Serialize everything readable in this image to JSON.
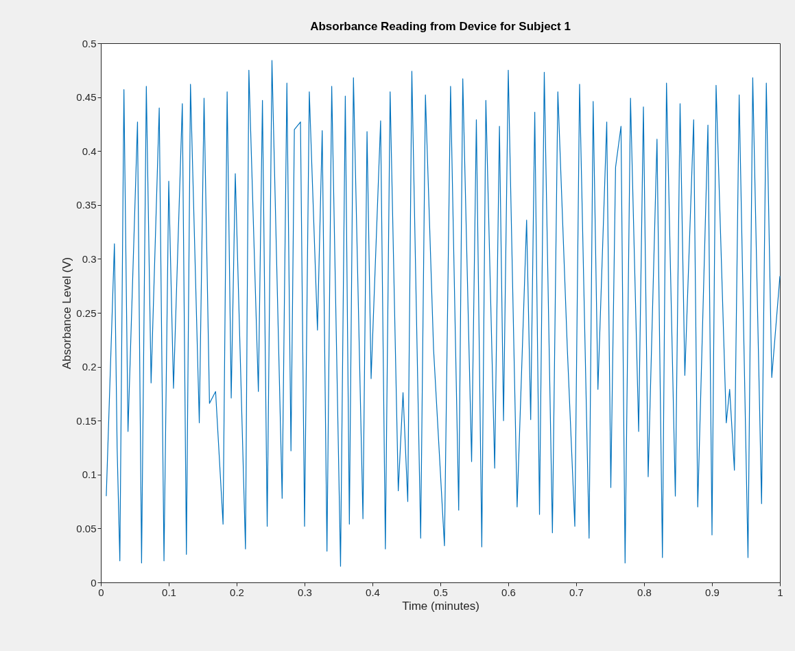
{
  "chart_data": {
    "type": "line",
    "title": "Absorbance Reading from Device for Subject 1",
    "xlabel": "Time (minutes)",
    "ylabel": "Absorbance Level (V)",
    "x": [
      0.008,
      0.02,
      0.024,
      0.028,
      0.034,
      0.04,
      0.054,
      0.06,
      0.067,
      0.074,
      0.086,
      0.093,
      0.1,
      0.107,
      0.12,
      0.126,
      0.132,
      0.145,
      0.152,
      0.16,
      0.169,
      0.18,
      0.186,
      0.192,
      0.198,
      0.213,
      0.218,
      0.232,
      0.238,
      0.245,
      0.252,
      0.267,
      0.274,
      0.28,
      0.285,
      0.294,
      0.3,
      0.307,
      0.319,
      0.326,
      0.333,
      0.34,
      0.353,
      0.36,
      0.366,
      0.372,
      0.386,
      0.392,
      0.398,
      0.412,
      0.419,
      0.426,
      0.438,
      0.445,
      0.452,
      0.458,
      0.471,
      0.478,
      0.49,
      0.506,
      0.515,
      0.527,
      0.533,
      0.546,
      0.553,
      0.561,
      0.567,
      0.58,
      0.587,
      0.593,
      0.6,
      0.613,
      0.627,
      0.633,
      0.639,
      0.646,
      0.653,
      0.665,
      0.673,
      0.687,
      0.698,
      0.705,
      0.719,
      0.725,
      0.732,
      0.745,
      0.751,
      0.758,
      0.766,
      0.772,
      0.78,
      0.792,
      0.799,
      0.806,
      0.819,
      0.827,
      0.833,
      0.846,
      0.853,
      0.86,
      0.873,
      0.879,
      0.894,
      0.9,
      0.906,
      0.921,
      0.926,
      0.933,
      0.94,
      0.953,
      0.96,
      0.973,
      0.98,
      0.988,
      1.0
    ],
    "values": [
      0.08,
      0.314,
      0.125,
      0.02,
      0.457,
      0.14,
      0.427,
      0.018,
      0.46,
      0.185,
      0.44,
      0.02,
      0.372,
      0.18,
      0.444,
      0.026,
      0.462,
      0.148,
      0.449,
      0.166,
      0.177,
      0.054,
      0.455,
      0.171,
      0.379,
      0.031,
      0.475,
      0.177,
      0.447,
      0.052,
      0.484,
      0.078,
      0.463,
      0.122,
      0.42,
      0.427,
      0.052,
      0.455,
      0.234,
      0.419,
      0.029,
      0.46,
      0.015,
      0.451,
      0.054,
      0.468,
      0.059,
      0.418,
      0.189,
      0.428,
      0.031,
      0.455,
      0.085,
      0.176,
      0.075,
      0.474,
      0.041,
      0.452,
      0.216,
      0.034,
      0.46,
      0.067,
      0.467,
      0.112,
      0.429,
      0.033,
      0.447,
      0.106,
      0.423,
      0.15,
      0.475,
      0.07,
      0.336,
      0.151,
      0.436,
      0.063,
      0.473,
      0.046,
      0.455,
      0.216,
      0.052,
      0.462,
      0.041,
      0.446,
      0.179,
      0.427,
      0.088,
      0.385,
      0.423,
      0.018,
      0.449,
      0.14,
      0.441,
      0.098,
      0.411,
      0.023,
      0.463,
      0.08,
      0.444,
      0.192,
      0.429,
      0.07,
      0.424,
      0.044,
      0.461,
      0.148,
      0.179,
      0.104,
      0.452,
      0.023,
      0.468,
      0.073,
      0.463,
      0.19,
      0.284
    ],
    "color": "#0072bd",
    "xlim": [
      0,
      1
    ],
    "ylim": [
      0,
      0.5
    ],
    "xticks": [
      0,
      0.1,
      0.2,
      0.3,
      0.4,
      0.5,
      0.6,
      0.7,
      0.8,
      0.9,
      1
    ],
    "yticks": [
      0,
      0.05,
      0.1,
      0.15,
      0.2,
      0.25,
      0.3,
      0.35,
      0.4,
      0.45,
      0.5
    ],
    "grid": false,
    "marker": "none",
    "line_style": "solid"
  }
}
